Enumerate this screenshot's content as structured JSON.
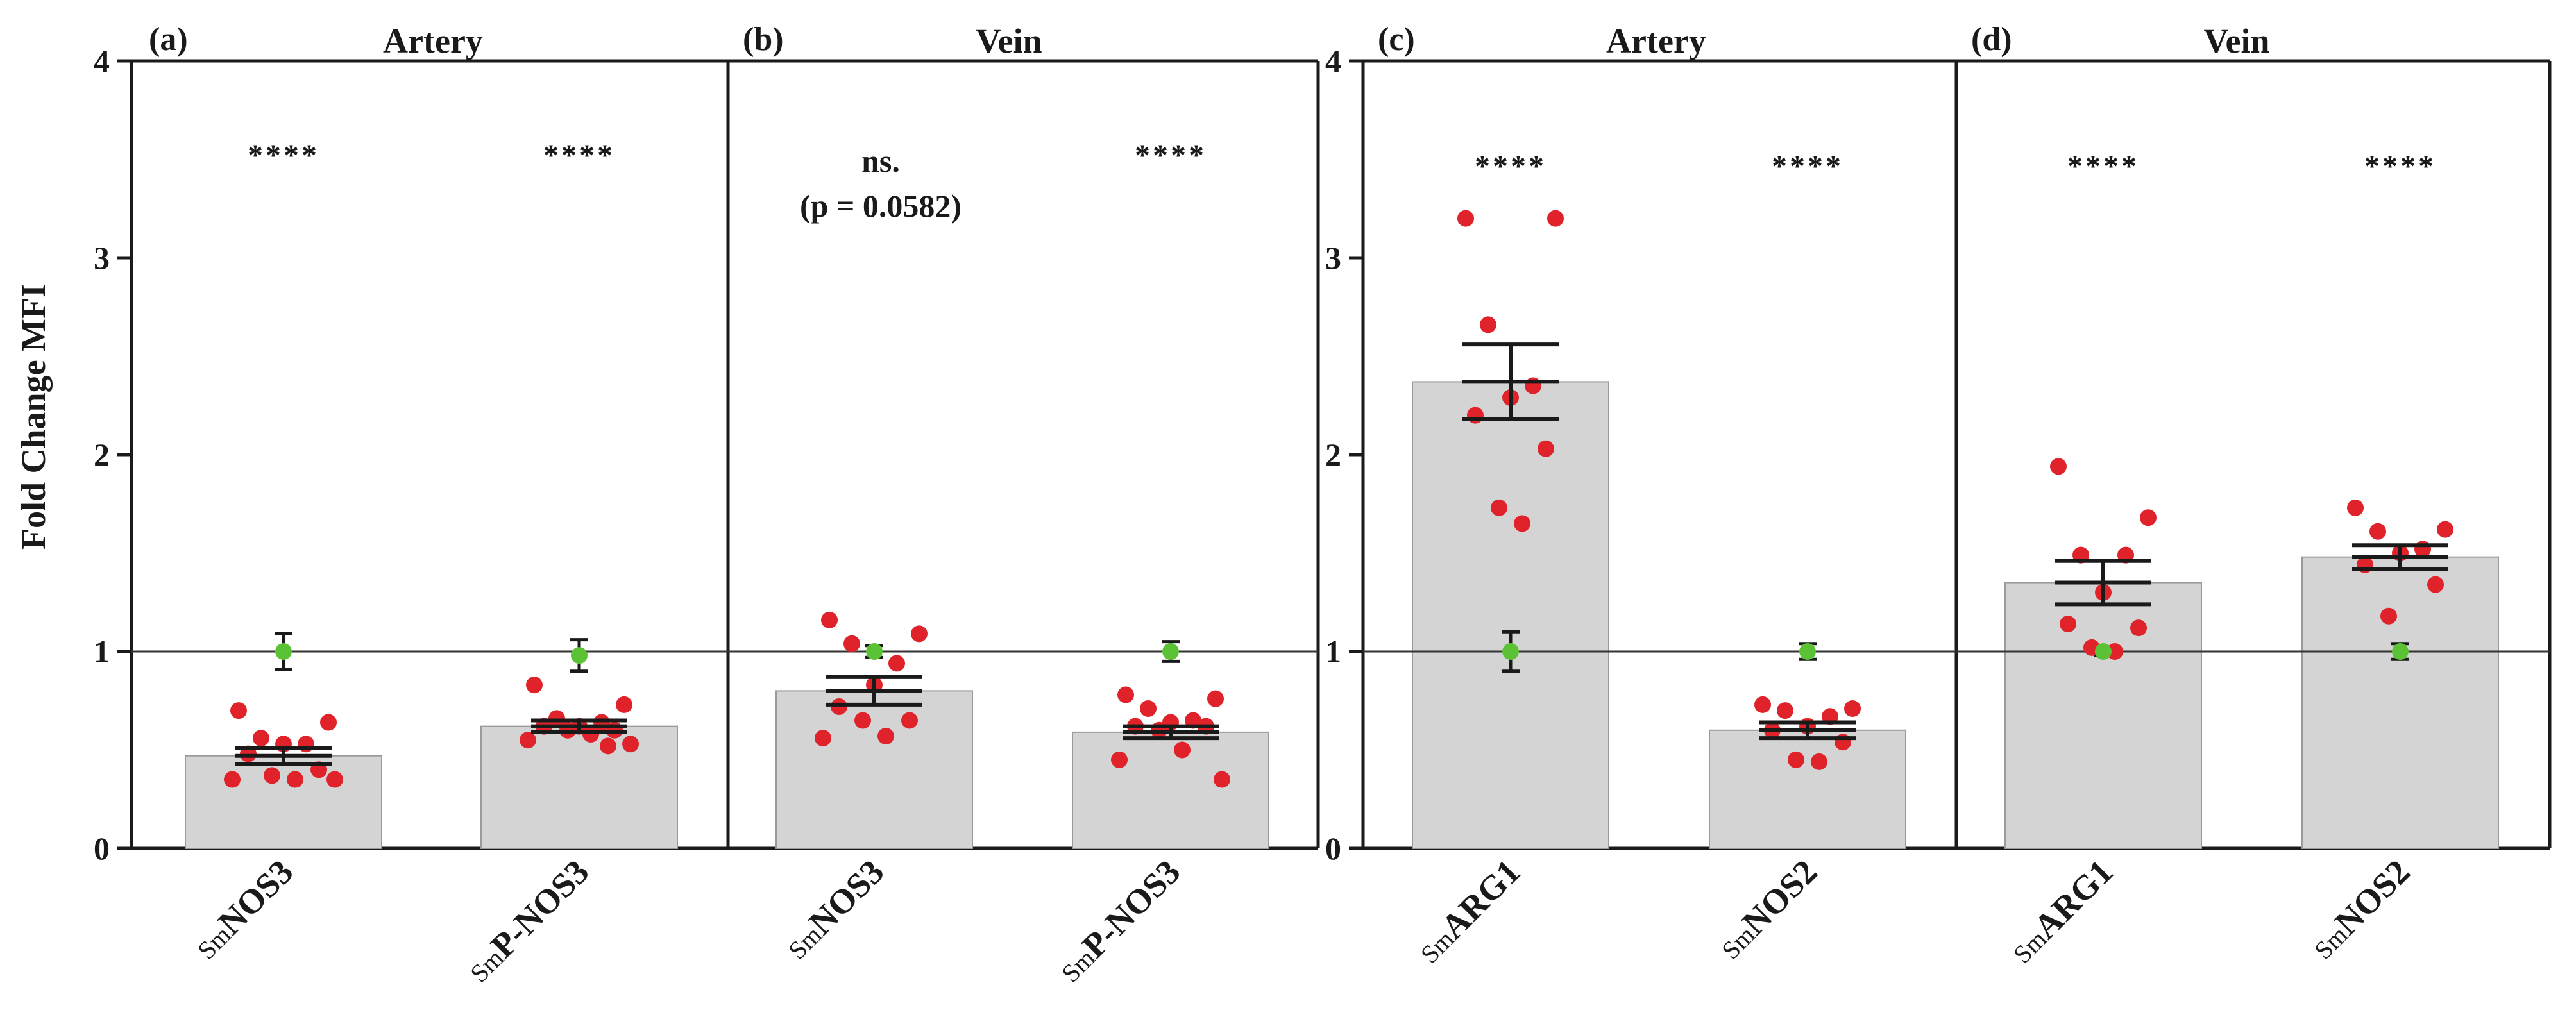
{
  "chart_data": [
    {
      "type": "bar",
      "ylabel": "Fold Change MFI",
      "ylim": [
        0,
        4
      ],
      "yticks": [
        0,
        1,
        2,
        3,
        4
      ],
      "reference_line": 1,
      "panels": [
        {
          "letter": "(a)",
          "title": "Artery"
        },
        {
          "letter": "(b)",
          "title": "Vein"
        }
      ],
      "groups": [
        {
          "prefix": "Sm",
          "name": "NOS3",
          "panel": 0,
          "mean": 0.47,
          "sem": 0.04,
          "significance": "****",
          "points": [
            0.7,
            0.64,
            0.56,
            0.53,
            0.53,
            0.48,
            0.4,
            0.37,
            0.35,
            0.35,
            0.35
          ],
          "control": {
            "mean": 1.0,
            "err": 0.09
          }
        },
        {
          "prefix": "Sm",
          "name": "P-NOS3",
          "panel": 0,
          "mean": 0.62,
          "sem": 0.03,
          "significance": "****",
          "points": [
            0.83,
            0.73,
            0.66,
            0.64,
            0.62,
            0.62,
            0.6,
            0.6,
            0.58,
            0.55,
            0.53,
            0.52
          ],
          "control": {
            "mean": 0.98,
            "err": 0.08
          }
        },
        {
          "prefix": "Sm",
          "name": "NOS3",
          "panel": 1,
          "mean": 0.8,
          "sem": 0.07,
          "significance": "ns.",
          "pvalue": "(p = 0.0582)",
          "points": [
            1.16,
            1.09,
            1.04,
            0.94,
            0.83,
            0.72,
            0.65,
            0.65,
            0.57,
            0.56
          ],
          "control": {
            "mean": 1.0,
            "err": 0.03
          }
        },
        {
          "prefix": "Sm",
          "name": "P-NOS3",
          "panel": 1,
          "mean": 0.59,
          "sem": 0.03,
          "significance": "****",
          "points": [
            0.78,
            0.76,
            0.71,
            0.65,
            0.64,
            0.62,
            0.62,
            0.6,
            0.5,
            0.45,
            0.35
          ],
          "control": {
            "mean": 1.0,
            "err": 0.05
          }
        }
      ]
    },
    {
      "type": "bar",
      "ylabel": "",
      "ylim": [
        0,
        4
      ],
      "yticks": [
        0,
        1,
        2,
        3,
        4
      ],
      "reference_line": 1,
      "panels": [
        {
          "letter": "(c)",
          "title": "Artery"
        },
        {
          "letter": "(d)",
          "title": "Vein"
        }
      ],
      "groups": [
        {
          "prefix": "Sm",
          "name": "ARG1",
          "panel": 0,
          "mean": 2.37,
          "sem": 0.19,
          "significance": "****",
          "points": [
            3.2,
            3.2,
            2.66,
            2.35,
            2.29,
            2.2,
            2.03,
            1.73,
            1.65
          ],
          "control": {
            "mean": 1.0,
            "err": 0.1
          }
        },
        {
          "prefix": "Sm",
          "name": "NOS2",
          "panel": 0,
          "mean": 0.6,
          "sem": 0.04,
          "significance": "****",
          "points": [
            0.73,
            0.71,
            0.7,
            0.67,
            0.62,
            0.6,
            0.54,
            0.45,
            0.44
          ],
          "control": {
            "mean": 1.0,
            "err": 0.04
          }
        },
        {
          "prefix": "Sm",
          "name": "ARG1",
          "panel": 1,
          "mean": 1.35,
          "sem": 0.11,
          "significance": "****",
          "points": [
            1.94,
            1.68,
            1.49,
            1.49,
            1.3,
            1.14,
            1.12,
            1.02,
            1.0
          ],
          "control": {
            "mean": 1.0,
            "err": 0.02
          }
        },
        {
          "prefix": "Sm",
          "name": "NOS2",
          "panel": 1,
          "mean": 1.48,
          "sem": 0.06,
          "significance": "****",
          "points": [
            1.73,
            1.62,
            1.61,
            1.52,
            1.5,
            1.44,
            1.34,
            1.18
          ],
          "control": {
            "mean": 1.0,
            "err": 0.04
          }
        }
      ]
    }
  ],
  "colors": {
    "bar_fill": "#d4d4d4",
    "point": "#e0232b",
    "control": "#5bc236",
    "axis": "#1a1a1a"
  }
}
